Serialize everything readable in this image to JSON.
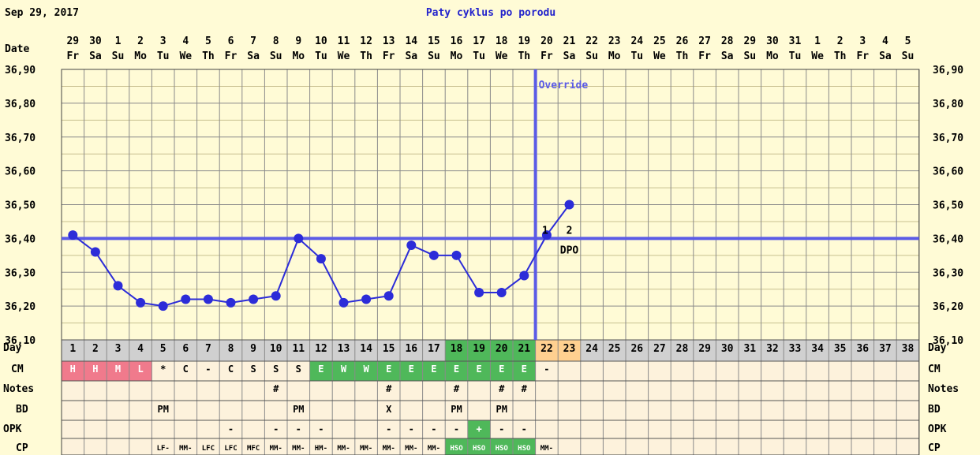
{
  "header": {
    "date": "Sep 29, 2017",
    "title": "Paty cyklus po porodu"
  },
  "colors": {
    "background": "#fffbd6",
    "grid": "#8a8a8a",
    "accent": "#5b5be6",
    "curve": "#2c2cd8",
    "title": "#2323cc",
    "day_row": "#d0d0d0",
    "fertile_green": "#4fb85a",
    "post_orange": "#ffd090",
    "period_pink": "#f07a8c",
    "cell_light": "#fdf2dc"
  },
  "labels": {
    "date_row": "Date",
    "day_row": "Day",
    "cm_row": "CM",
    "notes_row": "Notes",
    "bd_row": "BD",
    "opk_row": "OPK",
    "cp_row": "CP",
    "override": "Override",
    "dpo": "DPO",
    "dpo_1": "1",
    "dpo_2": "2"
  },
  "chart_data": {
    "type": "line",
    "title": "Paty cyklus po porodu",
    "ylim": [
      36.1,
      36.9
    ],
    "y_ticks": [
      "36,10",
      "36,20",
      "36,30",
      "36,40",
      "36,50",
      "36,60",
      "36,70",
      "36,80",
      "36,90"
    ],
    "dates": [
      "29",
      "30",
      "1",
      "2",
      "3",
      "4",
      "5",
      "6",
      "7",
      "8",
      "9",
      "10",
      "11",
      "12",
      "13",
      "14",
      "15",
      "16",
      "17",
      "18",
      "19",
      "20",
      "21",
      "22",
      "23",
      "24",
      "25",
      "26",
      "27",
      "28",
      "29",
      "30",
      "31",
      "1",
      "2",
      "3",
      "4",
      "5"
    ],
    "weekdays": [
      "Fr",
      "Sa",
      "Su",
      "Mo",
      "Tu",
      "We",
      "Th",
      "Fr",
      "Sa",
      "Su",
      "Mo",
      "Tu",
      "We",
      "Th",
      "Fr",
      "Sa",
      "Su",
      "Mo",
      "Tu",
      "We",
      "Th",
      "Fr",
      "Sa",
      "Su",
      "Mo",
      "Tu",
      "We",
      "Th",
      "Fr",
      "Sa",
      "Su",
      "Mo",
      "Tu",
      "We",
      "Th",
      "Fr",
      "Sa",
      "Su"
    ],
    "cycle_days": [
      "1",
      "2",
      "3",
      "4",
      "5",
      "6",
      "7",
      "8",
      "9",
      "10",
      "11",
      "12",
      "13",
      "14",
      "15",
      "16",
      "17",
      "18",
      "19",
      "20",
      "21",
      "22",
      "23",
      "24",
      "25",
      "26",
      "27",
      "28",
      "29",
      "30",
      "31",
      "32",
      "33",
      "34",
      "35",
      "36",
      "37",
      "38"
    ],
    "temperatures": [
      36.41,
      36.36,
      36.26,
      36.21,
      36.2,
      36.22,
      36.22,
      36.21,
      36.22,
      36.23,
      36.4,
      36.34,
      36.21,
      36.22,
      36.23,
      36.38,
      36.35,
      36.35,
      36.24,
      36.24,
      36.29,
      36.41,
      36.5
    ],
    "coverline": 36.4,
    "override_day": 21,
    "cm": [
      "H",
      "H",
      "M",
      "L",
      "*",
      "C",
      "-",
      "C",
      "S",
      "S",
      "S",
      "E",
      "W",
      "W",
      "E",
      "E",
      "E",
      "E",
      "E",
      "E",
      "E",
      "-",
      "",
      "",
      "",
      "",
      "",
      "",
      "",
      "",
      "",
      "",
      "",
      "",
      "",
      "",
      "",
      ""
    ],
    "notes": [
      "",
      "",
      "",
      "",
      "",
      "",
      "",
      "",
      "",
      "#",
      "",
      "",
      "",
      "",
      "#",
      "",
      "",
      "#",
      "",
      "#",
      "#",
      "",
      "",
      "",
      "",
      "",
      "",
      "",
      "",
      "",
      "",
      "",
      "",
      "",
      "",
      "",
      "",
      ""
    ],
    "bd": [
      "",
      "",
      "",
      "",
      "PM",
      "",
      "",
      "",
      "",
      "",
      "PM",
      "",
      "",
      "",
      "X",
      "",
      "",
      "PM",
      "",
      "PM",
      "",
      "",
      "",
      "",
      "",
      "",
      "",
      "",
      "",
      "",
      "",
      "",
      "",
      "",
      "",
      "",
      "",
      ""
    ],
    "opk": [
      "",
      "",
      "",
      "",
      "",
      "",
      "",
      "-",
      "",
      "-",
      "-",
      "-",
      "",
      "",
      "-",
      "-",
      "-",
      "-",
      "+",
      "-",
      "-",
      "",
      "",
      "",
      "",
      "",
      "",
      "",
      "",
      "",
      "",
      "",
      "",
      "",
      "",
      "",
      "",
      ""
    ],
    "cp": [
      "",
      "",
      "",
      "",
      "LF-",
      "MM-",
      "LFC",
      "LFC",
      "MFC",
      "MM-",
      "MM-",
      "HM-",
      "MM-",
      "MM-",
      "MM-",
      "MM-",
      "MM-",
      "HSO",
      "HSO",
      "HSO",
      "HSO",
      "MM-",
      "",
      "",
      "",
      "",
      "",
      "",
      "",
      "",
      "",
      "",
      "",
      "",
      "",
      "",
      "",
      ""
    ]
  }
}
